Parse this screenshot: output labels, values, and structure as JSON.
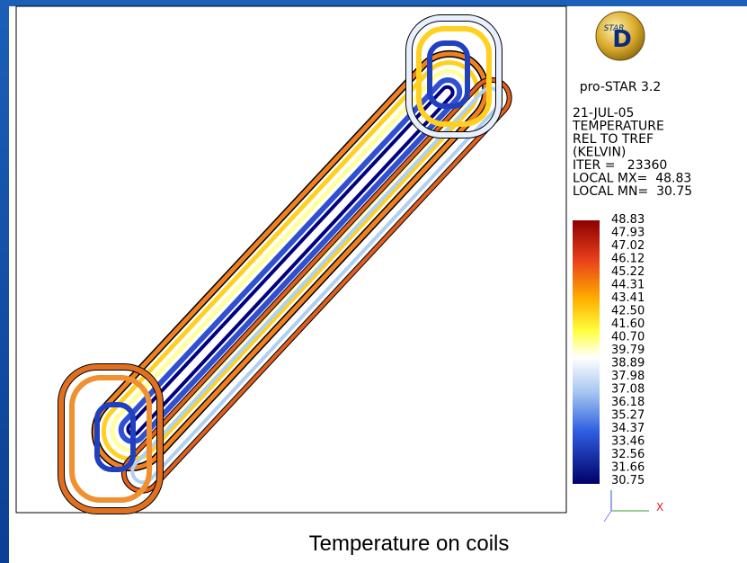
{
  "logo": {
    "top": "STAR",
    "letter": "D"
  },
  "product": "pro-STAR 3.2",
  "info": [
    "21-JUL-05",
    "TEMPERATURE",
    "REL TO TREF",
    "(KELVIN)",
    "ITER =   23360",
    "LOCAL MX=  48.83",
    "LOCAL MN=  30.75"
  ],
  "colorbar": {
    "labels": [
      "48.83",
      "47.93",
      "47.02",
      "46.12",
      "45.22",
      "44.31",
      "43.41",
      "42.50",
      "41.60",
      "40.70",
      "39.79",
      "38.89",
      "37.98",
      "37.08",
      "36.18",
      "35.27",
      "34.37",
      "33.46",
      "32.56",
      "31.66",
      "30.75"
    ]
  },
  "axis_label": "X",
  "caption": "Temperature on coils"
}
